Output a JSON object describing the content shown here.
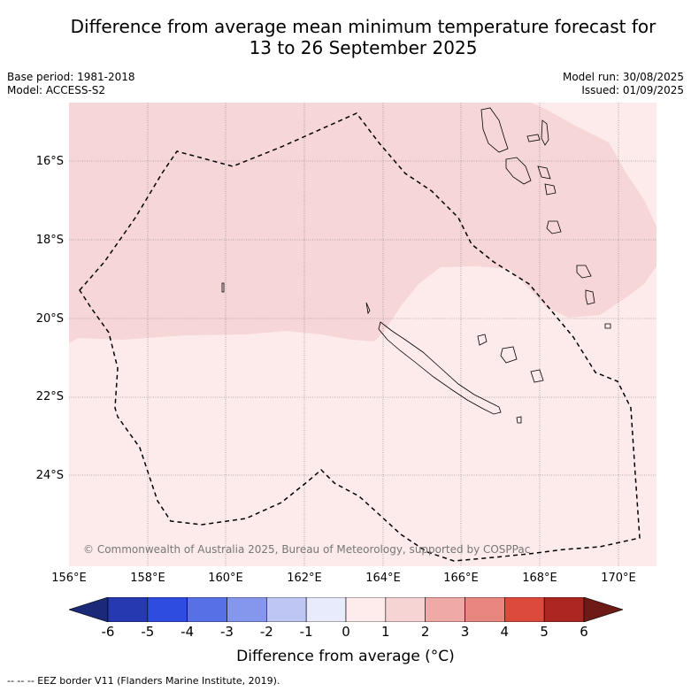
{
  "title_line1": "Difference from average mean minimum temperature forecast for",
  "title_line2": "13 to 26 September 2025",
  "base_period": "Base period: 1981-2018",
  "model": "Model: ACCESS-S2",
  "model_run": "Model run: 30/08/2025",
  "issued": "Issued: 01/09/2025",
  "copyright": "© Commonwealth of Australia 2025, Bureau of Meteorology, supported by COSPPac",
  "lat_labels": [
    "16°S",
    "18°S",
    "20°S",
    "22°S",
    "24°S"
  ],
  "lon_labels": [
    "156°E",
    "158°E",
    "160°E",
    "162°E",
    "164°E",
    "166°E",
    "168°E",
    "170°E"
  ],
  "colorbar": {
    "ticks": [
      "-6",
      "-5",
      "-4",
      "-3",
      "-2",
      "-1",
      "0",
      "1",
      "2",
      "3",
      "4",
      "5",
      "6"
    ],
    "colors": [
      "#1b2a78",
      "#2639b0",
      "#2e4ce0",
      "#5670e6",
      "#8597ec",
      "#bec6f4",
      "#e8ebfb",
      "#fdeceb",
      "#f7d4d4",
      "#efaaa7",
      "#e7877f",
      "#dc4a3c",
      "#ac2722",
      "#6e1a16"
    ],
    "label": "Difference from average (°C)"
  },
  "map_colors": {
    "anomaly_0_1": "#fcebea",
    "anomaly_1_2": "#f6d6d6"
  },
  "footer": "-- -- -- EEZ border V11 (Flanders Marine Institute, 2019)."
}
